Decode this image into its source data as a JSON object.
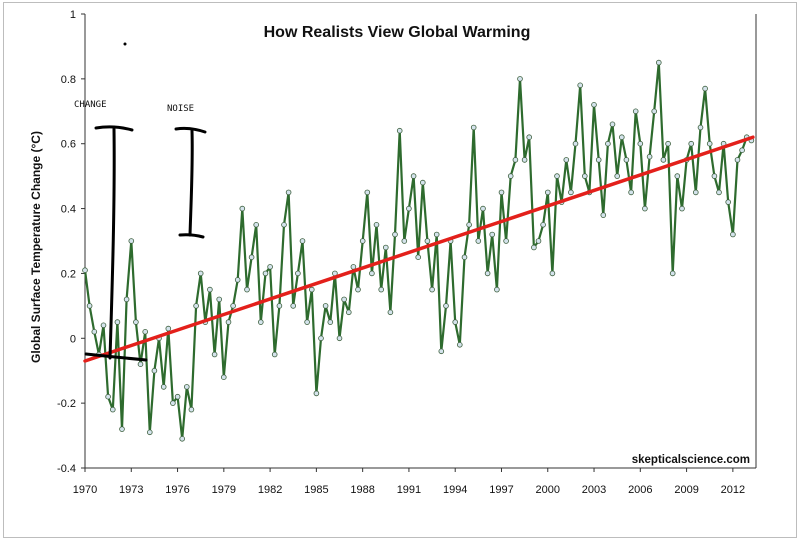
{
  "chart_data": {
    "type": "line",
    "title": "How Realists View Global Warming",
    "xlabel": "",
    "ylabel": "Global Surface Temperature Change (°C)",
    "xlim": [
      1970,
      2013.5
    ],
    "ylim": [
      -0.4,
      1
    ],
    "x_ticks": [
      "1970",
      "1973",
      "1976",
      "1979",
      "1982",
      "1985",
      "1988",
      "1991",
      "1994",
      "1997",
      "2000",
      "2003",
      "2006",
      "2009",
      "2012"
    ],
    "y_ticks": [
      "-0.4",
      "-0.2",
      "0",
      "0.2",
      "0.4",
      "0.6",
      "0.8",
      "1"
    ],
    "grid": false,
    "series": [
      {
        "kind": "monthly-anomaly",
        "color": "#2e6b2e",
        "marker_fill": "#d4e3ec",
        "x": [
          1970.0,
          1970.3,
          1970.6,
          1970.9,
          1971.2,
          1971.5,
          1971.8,
          1972.1,
          1972.4,
          1972.7,
          1973.0,
          1973.3,
          1973.6,
          1973.9,
          1974.2,
          1974.5,
          1974.8,
          1975.1,
          1975.4,
          1975.7,
          1976.0,
          1976.3,
          1976.6,
          1976.9,
          1977.2,
          1977.5,
          1977.8,
          1978.1,
          1978.4,
          1978.7,
          1979.0,
          1979.3,
          1979.6,
          1979.9,
          1980.2,
          1980.5,
          1980.8,
          1981.1,
          1981.4,
          1981.7,
          1982.0,
          1982.3,
          1982.6,
          1982.9,
          1983.2,
          1983.5,
          1983.8,
          1984.1,
          1984.4,
          1984.7,
          1985.0,
          1985.3,
          1985.6,
          1985.9,
          1986.2,
          1986.5,
          1986.8,
          1987.1,
          1987.4,
          1987.7,
          1988.0,
          1988.3,
          1988.6,
          1988.9,
          1989.2,
          1989.5,
          1989.8,
          1990.1,
          1990.4,
          1990.7,
          1991.0,
          1991.3,
          1991.6,
          1991.9,
          1992.2,
          1992.5,
          1992.8,
          1993.1,
          1993.4,
          1993.7,
          1994.0,
          1994.3,
          1994.6,
          1994.9,
          1995.2,
          1995.5,
          1995.8,
          1996.1,
          1996.4,
          1996.7,
          1997.0,
          1997.3,
          1997.6,
          1997.9,
          1998.2,
          1998.5,
          1998.8,
          1999.1,
          1999.4,
          1999.7,
          2000.0,
          2000.3,
          2000.6,
          2000.9,
          2001.2,
          2001.5,
          2001.8,
          2002.1,
          2002.4,
          2002.7,
          2003.0,
          2003.3,
          2003.6,
          2003.9,
          2004.2,
          2004.5,
          2004.8,
          2005.1,
          2005.4,
          2005.7,
          2006.0,
          2006.3,
          2006.6,
          2006.9,
          2007.2,
          2007.5,
          2007.8,
          2008.1,
          2008.4,
          2008.7,
          2009.0,
          2009.3,
          2009.6,
          2009.9,
          2010.2,
          2010.5,
          2010.8,
          2011.1,
          2011.4,
          2011.7,
          2012.0,
          2012.3,
          2012.6,
          2012.9,
          2013.2
        ],
        "y": [
          0.21,
          0.1,
          0.02,
          -0.05,
          0.04,
          -0.18,
          -0.22,
          0.05,
          -0.28,
          0.12,
          0.3,
          0.05,
          -0.08,
          0.02,
          -0.29,
          -0.1,
          0.0,
          -0.15,
          0.03,
          -0.2,
          -0.18,
          -0.31,
          -0.15,
          -0.22,
          0.1,
          0.2,
          0.05,
          0.15,
          -0.05,
          0.12,
          -0.12,
          0.05,
          0.1,
          0.18,
          0.4,
          0.15,
          0.25,
          0.35,
          0.05,
          0.2,
          0.22,
          -0.05,
          0.1,
          0.35,
          0.45,
          0.1,
          0.2,
          0.3,
          0.05,
          0.15,
          -0.17,
          0.0,
          0.1,
          0.05,
          0.2,
          0.0,
          0.12,
          0.08,
          0.22,
          0.15,
          0.3,
          0.45,
          0.2,
          0.35,
          0.15,
          0.28,
          0.08,
          0.32,
          0.64,
          0.3,
          0.4,
          0.5,
          0.25,
          0.48,
          0.3,
          0.15,
          0.32,
          -0.04,
          0.1,
          0.3,
          0.05,
          -0.02,
          0.25,
          0.35,
          0.65,
          0.3,
          0.4,
          0.2,
          0.32,
          0.15,
          0.45,
          0.3,
          0.5,
          0.55,
          0.8,
          0.55,
          0.62,
          0.28,
          0.3,
          0.35,
          0.45,
          0.2,
          0.5,
          0.42,
          0.55,
          0.45,
          0.6,
          0.78,
          0.5,
          0.45,
          0.72,
          0.55,
          0.38,
          0.6,
          0.66,
          0.5,
          0.62,
          0.55,
          0.45,
          0.7,
          0.6,
          0.4,
          0.56,
          0.7,
          0.85,
          0.55,
          0.6,
          0.2,
          0.5,
          0.4,
          0.55,
          0.6,
          0.45,
          0.65,
          0.77,
          0.6,
          0.5,
          0.45,
          0.6,
          0.42,
          0.32,
          0.55,
          0.58,
          0.62,
          0.61
        ]
      },
      {
        "kind": "trend",
        "color": "#e3201b",
        "x": [
          1970.0,
          2013.3
        ],
        "y": [
          -0.07,
          0.62
        ]
      }
    ],
    "credit": "skepticalscience.com",
    "annotations": [
      {
        "label": "CHANGE"
      },
      {
        "label": "NOISE"
      }
    ]
  }
}
